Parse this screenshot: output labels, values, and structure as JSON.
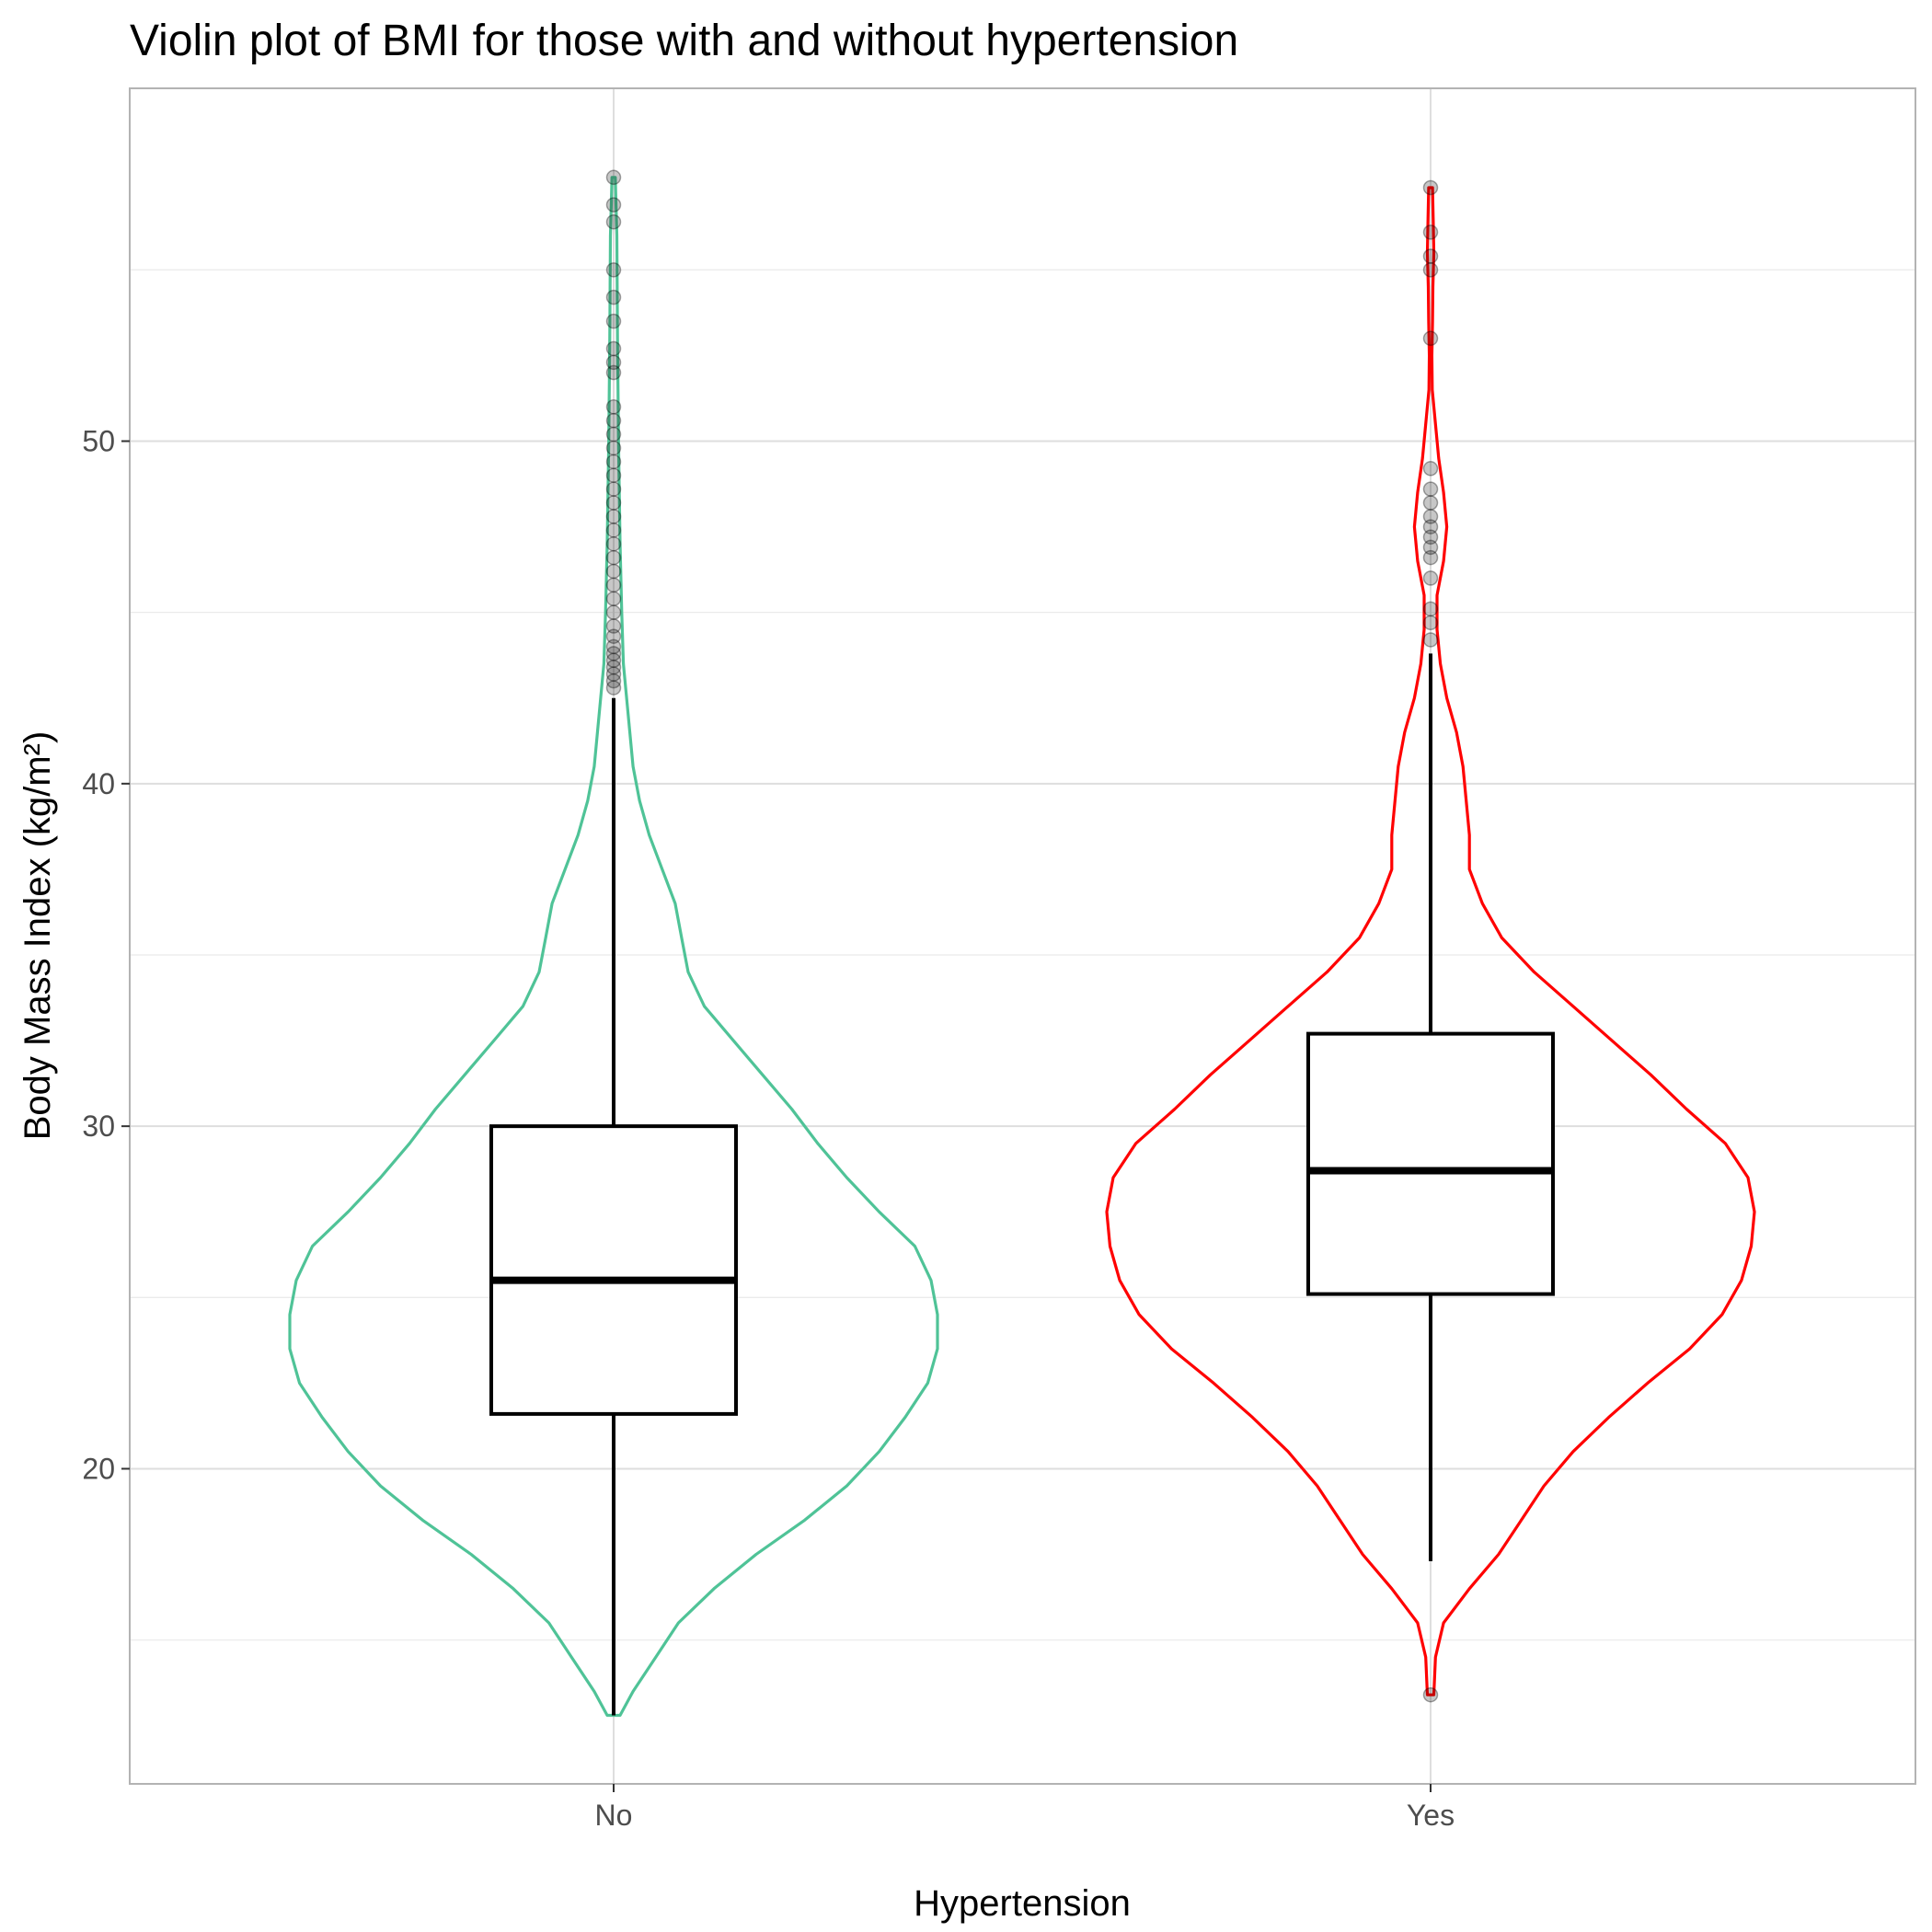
{
  "chart_data": {
    "type": "violin",
    "title": "Violin plot of BMI for those with and without hypertension",
    "xlabel": "Hypertension",
    "ylabel": "Body Mass Index (kg/m²)",
    "categories": [
      "No",
      "Yes"
    ],
    "ylim": [
      10.8,
      60.3
    ],
    "yticks": [
      20,
      30,
      40,
      50
    ],
    "ytick_labels": [
      "20",
      "30",
      "40",
      "50"
    ],
    "grid": true,
    "legend": "none",
    "colors": {
      "No": "#4fc397",
      "Yes": "#ff0000",
      "box": "#000000",
      "outlier": "#999999"
    },
    "violins": [
      {
        "category": "No",
        "color": "#4fc397",
        "min": 12.8,
        "max": 57.7,
        "box": {
          "whisker_low": 12.8,
          "q1": 21.6,
          "median": 25.5,
          "q3": 30.0,
          "whisker_high": 42.5
        },
        "outliers": [
          42.8,
          43.0,
          43.2,
          43.4,
          43.6,
          43.8,
          44.0,
          44.3,
          44.6,
          45.0,
          45.4,
          45.8,
          46.2,
          46.6,
          47.0,
          47.4,
          47.8,
          48.2,
          48.6,
          49.0,
          49.4,
          49.8,
          50.2,
          50.6,
          51.0,
          52.0,
          52.3,
          52.7,
          53.5,
          54.2,
          55.0,
          57.7,
          56.9,
          56.4
        ],
        "density": [
          [
            12.8,
            0.02
          ],
          [
            13.5,
            0.06
          ],
          [
            14.5,
            0.13
          ],
          [
            15.5,
            0.2
          ],
          [
            16.5,
            0.31
          ],
          [
            17.5,
            0.44
          ],
          [
            18.5,
            0.59
          ],
          [
            19.5,
            0.72
          ],
          [
            20.5,
            0.82
          ],
          [
            21.5,
            0.9
          ],
          [
            22.5,
            0.97
          ],
          [
            23.5,
            1.0
          ],
          [
            24.5,
            1.0
          ],
          [
            25.5,
            0.98
          ],
          [
            26.5,
            0.93
          ],
          [
            27.5,
            0.82
          ],
          [
            28.5,
            0.72
          ],
          [
            29.5,
            0.63
          ],
          [
            30.5,
            0.55
          ],
          [
            31.5,
            0.46
          ],
          [
            32.5,
            0.37
          ],
          [
            33.5,
            0.28
          ],
          [
            34.5,
            0.23
          ],
          [
            35.5,
            0.21
          ],
          [
            36.5,
            0.19
          ],
          [
            37.5,
            0.15
          ],
          [
            38.5,
            0.11
          ],
          [
            39.5,
            0.08
          ],
          [
            40.5,
            0.06
          ],
          [
            41.5,
            0.05
          ],
          [
            42.5,
            0.04
          ],
          [
            43.5,
            0.03
          ],
          [
            45,
            0.025
          ],
          [
            47,
            0.02
          ],
          [
            50,
            0.015
          ],
          [
            53,
            0.012
          ],
          [
            56,
            0.01
          ],
          [
            57.7,
            0.005
          ]
        ]
      },
      {
        "category": "Yes",
        "color": "#ff0000",
        "min": 13.4,
        "max": 57.4,
        "box": {
          "whisker_low": 17.3,
          "q1": 25.1,
          "median": 28.7,
          "q3": 32.7,
          "whisker_high": 43.8
        },
        "outliers": [
          13.4,
          44.2,
          44.7,
          45.1,
          46.0,
          46.6,
          46.9,
          47.2,
          47.5,
          47.8,
          48.2,
          48.6,
          49.2,
          53.0,
          55.0,
          55.4,
          56.1,
          57.4
        ],
        "density": [
          [
            13.4,
            0.01
          ],
          [
            14.5,
            0.015
          ],
          [
            15.5,
            0.04
          ],
          [
            16.5,
            0.12
          ],
          [
            17.5,
            0.21
          ],
          [
            18.5,
            0.28
          ],
          [
            19.5,
            0.35
          ],
          [
            20.5,
            0.44
          ],
          [
            21.5,
            0.55
          ],
          [
            22.5,
            0.67
          ],
          [
            23.5,
            0.8
          ],
          [
            24.5,
            0.9
          ],
          [
            25.5,
            0.96
          ],
          [
            26.5,
            0.99
          ],
          [
            27.5,
            1.0
          ],
          [
            28.5,
            0.98
          ],
          [
            29.5,
            0.91
          ],
          [
            30.5,
            0.79
          ],
          [
            31.5,
            0.68
          ],
          [
            32.5,
            0.56
          ],
          [
            33.5,
            0.44
          ],
          [
            34.5,
            0.32
          ],
          [
            35.5,
            0.22
          ],
          [
            36.5,
            0.16
          ],
          [
            37.5,
            0.12
          ],
          [
            38.5,
            0.12
          ],
          [
            39.5,
            0.11
          ],
          [
            40.5,
            0.1
          ],
          [
            41.5,
            0.08
          ],
          [
            42.5,
            0.05
          ],
          [
            43.5,
            0.03
          ],
          [
            44.5,
            0.02
          ],
          [
            45.5,
            0.02
          ],
          [
            46.5,
            0.04
          ],
          [
            47.5,
            0.05
          ],
          [
            48.5,
            0.04
          ],
          [
            49.5,
            0.025
          ],
          [
            50.5,
            0.015
          ],
          [
            51.5,
            0.005
          ],
          [
            52.5,
            0.004
          ],
          [
            53.5,
            0.006
          ],
          [
            54.5,
            0.007
          ],
          [
            55.5,
            0.01
          ],
          [
            56.5,
            0.008
          ],
          [
            57.4,
            0.006
          ]
        ]
      }
    ]
  }
}
